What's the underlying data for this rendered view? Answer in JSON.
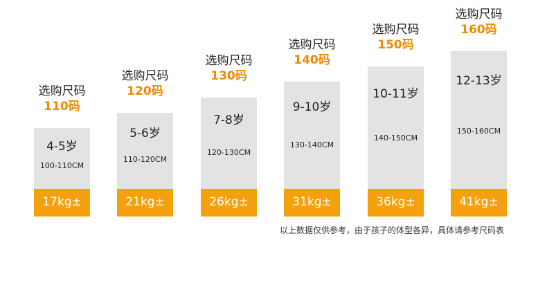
{
  "chart_data": {
    "type": "bar",
    "label_prefix": "选购尺码",
    "categories": [
      "110码",
      "120码",
      "130码",
      "140码",
      "150码",
      "160码"
    ],
    "ages": [
      "4-5岁",
      "5-6岁",
      "7-8岁",
      "9-10岁",
      "10-11岁",
      "12-13岁"
    ],
    "height_ranges": [
      "100-110CM",
      "110-120CM",
      "120-130CM",
      "130-140CM",
      "140-150CM",
      "150-160CM"
    ],
    "weights": [
      "17kg±",
      "21kg±",
      "26kg±",
      "31kg±",
      "36kg±",
      "41kg±"
    ],
    "values": [
      110,
      120,
      130,
      140,
      150,
      160
    ],
    "colors": {
      "bar": "#e3e3e3",
      "accent": "#f5a00d",
      "size_text": "#f08a00"
    }
  },
  "footnote": "以上数据仅供参考，由于孩子的体型各异，具体请参考尺码表"
}
